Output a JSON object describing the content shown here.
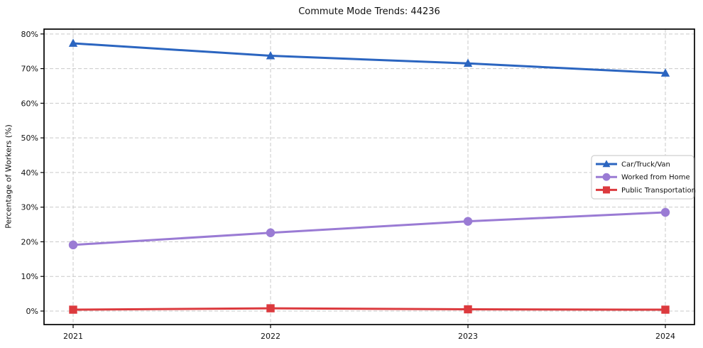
{
  "chart_data": {
    "type": "line",
    "title": "Commute Mode Trends: 44236",
    "xlabel": "",
    "ylabel": "Percentage of Workers (%)",
    "x": [
      "2021",
      "2022",
      "2023",
      "2024"
    ],
    "series": [
      {
        "name": "Car/Truck/Van",
        "color": "#2b65c0",
        "marker": "triangle",
        "values": [
          77.3,
          73.7,
          71.5,
          68.7
        ]
      },
      {
        "name": "Worked from Home",
        "color": "#9a7bd4",
        "marker": "circle",
        "values": [
          19.1,
          22.6,
          25.9,
          28.5
        ]
      },
      {
        "name": "Public Transportation",
        "color": "#dc3a3e",
        "marker": "square",
        "values": [
          0.4,
          0.8,
          0.5,
          0.4
        ]
      }
    ],
    "yticks": {
      "values": [
        0,
        10,
        20,
        30,
        40,
        50,
        60,
        70,
        80
      ],
      "labels": [
        "0%",
        "10%",
        "20%",
        "30%",
        "40%",
        "50%",
        "60%",
        "70%",
        "80%"
      ]
    },
    "ylim": [
      -3.9,
      81.4
    ],
    "grid": {
      "show": true,
      "style": "dashed",
      "color": "#c9c9c9"
    },
    "legend": {
      "position": "center-right",
      "entries": [
        "Car/Truck/Van",
        "Worked from Home",
        "Public Transportation"
      ]
    }
  }
}
